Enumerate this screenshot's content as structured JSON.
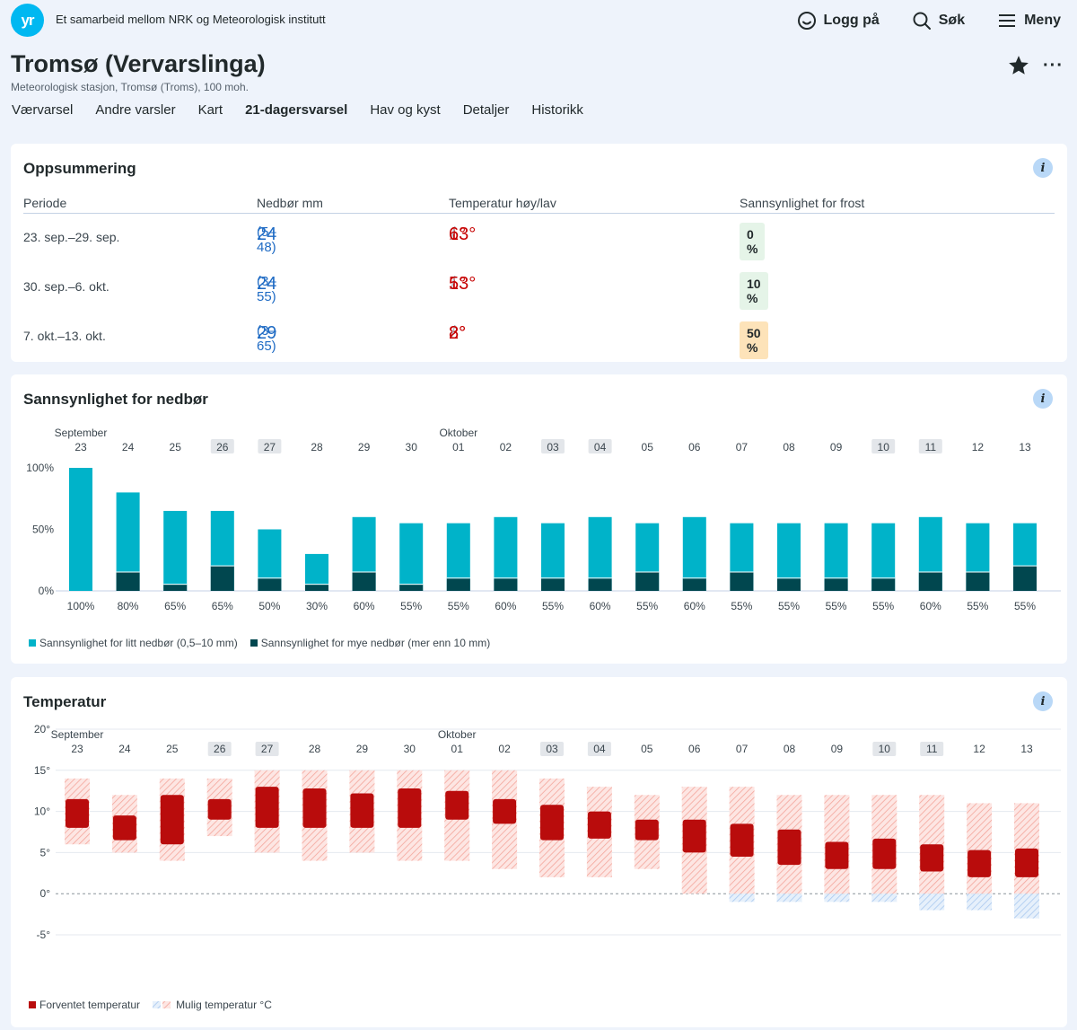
{
  "header": {
    "logo_text": "yr",
    "tagline": "Et samarbeid mellom NRK og Meteorologisk institutt",
    "nav": [
      {
        "label": "Logg på",
        "icon": "smiley-icon"
      },
      {
        "label": "Søk",
        "icon": "search-icon"
      },
      {
        "label": "Meny",
        "icon": "menu-icon"
      }
    ]
  },
  "location": {
    "title": "Tromsø (Vervarslinga)",
    "subtitle": "Meteorologisk stasjon, Tromsø (Troms), 100 moh."
  },
  "tabs": [
    {
      "label": "Værvarsel",
      "active": false
    },
    {
      "label": "Andre varsler",
      "active": false
    },
    {
      "label": "Kart",
      "active": false
    },
    {
      "label": "21-dagersvarsel",
      "active": true
    },
    {
      "label": "Hav og kyst",
      "active": false
    },
    {
      "label": "Detaljer",
      "active": false
    },
    {
      "label": "Historikk",
      "active": false
    }
  ],
  "summary": {
    "title": "Oppsummering",
    "headers": [
      "Periode",
      "Nedbør mm",
      "Temperatur høy/lav",
      "Sannsynlighet for frost"
    ],
    "rows": [
      {
        "period": "23. sep.–29. sep.",
        "precip": "24",
        "precip_range": "(5–48)",
        "high": "13°",
        "low": "6°",
        "frost": "0 %",
        "frost_color": "#e5f4e8"
      },
      {
        "period": "30. sep.–6. okt.",
        "precip": "24",
        "precip_range": "(3–55)",
        "high": "13°",
        "low": "5°",
        "frost": "10 %",
        "frost_color": "#e5f4e8"
      },
      {
        "period": "7. okt.–13. okt.",
        "precip": "29",
        "precip_range": "(3–65)",
        "high": "8°",
        "low": "2°",
        "frost": "50 %",
        "frost_color": "#fde3b9"
      }
    ]
  },
  "precip_card": {
    "title": "Sannsynlighet for nedbør",
    "legend": [
      "Sannsynlighet for litt nedbør (0,5–10 mm)",
      "Sannsynlighet for mye nedbør (mer enn 10 mm)"
    ],
    "colors": {
      "light": "#00b3c9",
      "heavy": "#01474f"
    }
  },
  "temp_card": {
    "title": "Temperatur",
    "legend": [
      "Forventet temperatur",
      "Mulig temperatur °C"
    ],
    "colors": {
      "expected": "#b90c0c",
      "possible": "#f6b6ad",
      "possible_cold": "#b7d2f2"
    }
  },
  "chart_data": [
    {
      "type": "bar",
      "title": "Sannsynlighet for nedbør",
      "month_labels": [
        {
          "label": "September",
          "index": 0
        },
        {
          "label": "Oktober",
          "index": 8
        }
      ],
      "categories": [
        "23",
        "24",
        "25",
        "26",
        "27",
        "28",
        "29",
        "30",
        "01",
        "02",
        "03",
        "04",
        "05",
        "06",
        "07",
        "08",
        "09",
        "10",
        "11",
        "12",
        "13"
      ],
      "weekend": [
        false,
        false,
        false,
        true,
        true,
        false,
        false,
        false,
        false,
        false,
        true,
        true,
        false,
        false,
        false,
        false,
        false,
        true,
        true,
        false,
        false
      ],
      "yticks": [
        "100%",
        "50%",
        "0%"
      ],
      "ylim": [
        0,
        100
      ],
      "series": [
        {
          "name": "Sannsynlighet for litt nedbør (0,5–10 mm)",
          "values": [
            100,
            80,
            65,
            65,
            50,
            30,
            60,
            55,
            55,
            60,
            55,
            60,
            55,
            60,
            55,
            55,
            55,
            55,
            60,
            55,
            55
          ]
        },
        {
          "name": "Sannsynlighet for mye nedbør (mer enn 10 mm)",
          "values": [
            0,
            15,
            5,
            20,
            10,
            5,
            15,
            5,
            10,
            10,
            10,
            10,
            15,
            10,
            15,
            10,
            10,
            10,
            15,
            15,
            20
          ]
        }
      ],
      "data_labels": [
        "100%",
        "80%",
        "65%",
        "65%",
        "50%",
        "30%",
        "60%",
        "55%",
        "55%",
        "60%",
        "55%",
        "60%",
        "55%",
        "60%",
        "55%",
        "55%",
        "55%",
        "55%",
        "60%",
        "55%",
        "55%"
      ]
    },
    {
      "type": "range",
      "title": "Temperatur",
      "month_labels": [
        {
          "label": "September",
          "index": 0
        },
        {
          "label": "Oktober",
          "index": 8
        }
      ],
      "categories": [
        "23",
        "24",
        "25",
        "26",
        "27",
        "28",
        "29",
        "30",
        "01",
        "02",
        "03",
        "04",
        "05",
        "06",
        "07",
        "08",
        "09",
        "10",
        "11",
        "12",
        "13"
      ],
      "weekend": [
        false,
        false,
        false,
        true,
        true,
        false,
        false,
        false,
        false,
        false,
        true,
        true,
        false,
        false,
        false,
        false,
        false,
        true,
        true,
        false,
        false
      ],
      "yticks": [
        "20°",
        "15°",
        "10°",
        "5°",
        "0°",
        "-5°"
      ],
      "ylim": [
        -5,
        20
      ],
      "series": [
        {
          "name": "Forventet temperatur",
          "low": [
            8,
            6.5,
            6,
            9,
            8,
            8,
            8,
            8,
            9,
            8.5,
            6.5,
            6.7,
            6.5,
            5,
            4.5,
            3.5,
            3,
            3,
            2.7,
            2,
            2
          ],
          "high": [
            11.5,
            9.5,
            12,
            11.5,
            13,
            12.8,
            12.2,
            12.8,
            12.5,
            11.5,
            10.8,
            10,
            9,
            9,
            8.5,
            7.8,
            6.3,
            6.7,
            6,
            5.3,
            5.5
          ]
        },
        {
          "name": "Mulig temperatur °C",
          "low": [
            6,
            5,
            4,
            7,
            5,
            4,
            5,
            4,
            4,
            3,
            2,
            2,
            3,
            0,
            -1,
            -1,
            -1,
            -1,
            -2,
            -2,
            -3
          ],
          "high": [
            14,
            12,
            14,
            14,
            15,
            15,
            15,
            15,
            15,
            15,
            14,
            13,
            12,
            13,
            13,
            12,
            12,
            12,
            12,
            11,
            11
          ]
        }
      ]
    }
  ]
}
